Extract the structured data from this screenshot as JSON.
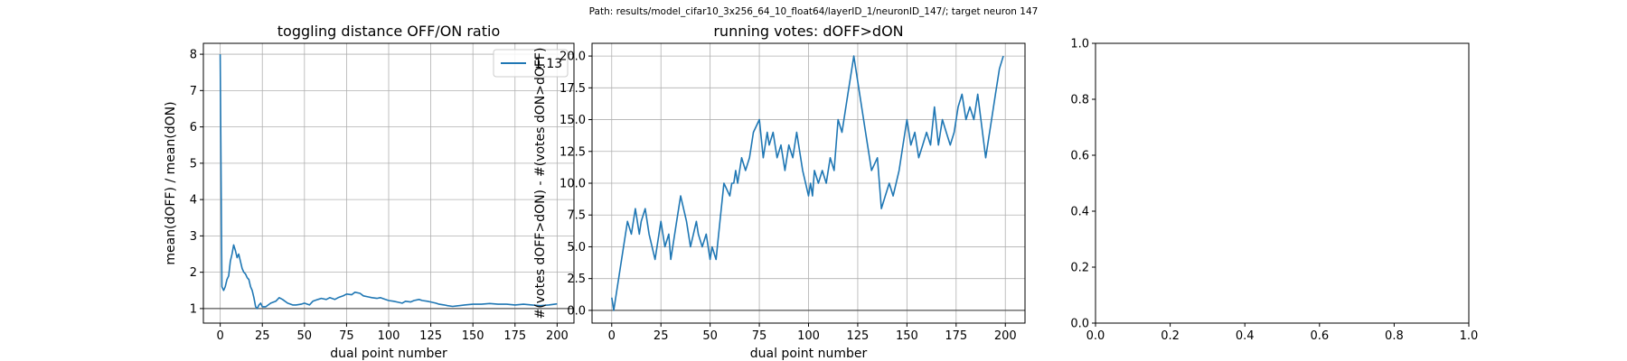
{
  "suptitle": "Path: results/model_cifar10_3x256_64_10_float64/layerID_1/neuronID_147/; target neuron 147",
  "colors": {
    "line": "#1f77b4",
    "grid": "#b0b0b0",
    "ref_line": "#555555"
  },
  "chart_data": [
    {
      "type": "line",
      "title": "toggling distance OFF/ON ratio",
      "xlabel": "dual point number",
      "ylabel": "mean(dOFF) / mean(dON)",
      "xlim": [
        -10,
        210
      ],
      "ylim": [
        0.6,
        8.3
      ],
      "xticks": [
        0,
        25,
        50,
        75,
        100,
        125,
        150,
        175,
        200
      ],
      "yticks": [
        1,
        2,
        3,
        4,
        5,
        6,
        7,
        8
      ],
      "ytick_labels": [
        "1",
        "2",
        "3",
        "4",
        "5",
        "6",
        "7",
        "8"
      ],
      "grid": true,
      "legend": {
        "position": "upper-right",
        "entries": [
          "1.13"
        ]
      },
      "hline": 1,
      "series": [
        {
          "name": "1.13",
          "x": [
            0,
            1,
            2,
            3,
            4,
            5,
            6,
            7,
            8,
            9,
            10,
            11,
            12,
            13,
            14,
            15,
            16,
            17,
            18,
            19,
            20,
            21,
            22,
            23,
            24,
            25,
            27,
            30,
            33,
            35,
            37,
            40,
            43,
            45,
            48,
            50,
            53,
            55,
            58,
            60,
            63,
            65,
            68,
            70,
            73,
            75,
            78,
            80,
            83,
            85,
            88,
            90,
            93,
            95,
            98,
            100,
            103,
            105,
            108,
            110,
            113,
            115,
            118,
            120,
            123,
            125,
            128,
            130,
            133,
            135,
            138,
            140,
            145,
            150,
            155,
            160,
            165,
            170,
            175,
            180,
            185,
            190,
            195,
            200
          ],
          "y": [
            8.0,
            1.6,
            1.5,
            1.6,
            1.8,
            1.9,
            2.3,
            2.5,
            2.75,
            2.6,
            2.4,
            2.5,
            2.3,
            2.1,
            2.0,
            1.95,
            1.85,
            1.8,
            1.6,
            1.5,
            1.3,
            1.05,
            1.0,
            1.1,
            1.15,
            1.05,
            1.05,
            1.15,
            1.2,
            1.3,
            1.25,
            1.15,
            1.1,
            1.1,
            1.12,
            1.15,
            1.1,
            1.2,
            1.25,
            1.28,
            1.25,
            1.3,
            1.25,
            1.3,
            1.35,
            1.4,
            1.38,
            1.45,
            1.42,
            1.35,
            1.32,
            1.3,
            1.28,
            1.3,
            1.25,
            1.22,
            1.2,
            1.18,
            1.15,
            1.2,
            1.18,
            1.22,
            1.25,
            1.22,
            1.2,
            1.18,
            1.15,
            1.12,
            1.1,
            1.08,
            1.06,
            1.07,
            1.1,
            1.12,
            1.12,
            1.14,
            1.12,
            1.12,
            1.1,
            1.12,
            1.1,
            1.08,
            1.1,
            1.13
          ]
        }
      ]
    },
    {
      "type": "line",
      "title": "running votes: dOFF>dON",
      "xlabel": "dual point number",
      "ylabel": "#(votes dOFF>dON) - #(votes dON>dOFF)",
      "xlim": [
        -10,
        210
      ],
      "ylim": [
        -1,
        21
      ],
      "xticks": [
        0,
        25,
        50,
        75,
        100,
        125,
        150,
        175,
        200
      ],
      "yticks": [
        0,
        2.5,
        5,
        7.5,
        10,
        12.5,
        15,
        17.5,
        20
      ],
      "ytick_labels": [
        "0.0",
        "2.5",
        "5.0",
        "7.5",
        "10.0",
        "12.5",
        "15.0",
        "17.5",
        "20.0"
      ],
      "grid": true,
      "hline": 0,
      "series": [
        {
          "name": "",
          "x": [
            0,
            1,
            4,
            7,
            8,
            10,
            12,
            14,
            15,
            17,
            19,
            22,
            25,
            27,
            29,
            30,
            33,
            35,
            38,
            40,
            43,
            44,
            46,
            48,
            50,
            51,
            53,
            55,
            57,
            60,
            61,
            62,
            63,
            64,
            66,
            68,
            70,
            72,
            75,
            77,
            79,
            80,
            82,
            84,
            86,
            88,
            90,
            92,
            94,
            97,
            100,
            101,
            102,
            103,
            105,
            107,
            109,
            111,
            113,
            115,
            117,
            120,
            123,
            126,
            129,
            132,
            135,
            137,
            139,
            141,
            143,
            146,
            148,
            150,
            152,
            154,
            156,
            158,
            160,
            162,
            164,
            166,
            168,
            170,
            172,
            174,
            176,
            178,
            180,
            182,
            184,
            186,
            190,
            193,
            195,
            197,
            199
          ],
          "y": [
            1,
            0,
            3,
            6,
            7,
            6,
            8,
            6,
            7,
            8,
            6,
            4,
            7,
            5,
            6,
            4,
            7,
            9,
            7,
            5,
            7,
            6,
            5,
            6,
            4,
            5,
            4,
            7,
            10,
            9,
            10,
            10,
            11,
            10,
            12,
            11,
            12,
            14,
            15,
            12,
            14,
            13,
            14,
            12,
            13,
            11,
            13,
            12,
            14,
            11,
            9,
            10,
            9,
            11,
            10,
            11,
            10,
            12,
            11,
            15,
            14,
            17,
            20,
            17,
            14,
            11,
            12,
            8,
            9,
            10,
            9,
            11,
            13,
            15,
            13,
            14,
            12,
            13,
            14,
            13,
            16,
            13,
            15,
            14,
            13,
            14,
            16,
            17,
            15,
            16,
            15,
            17,
            12,
            15,
            17,
            19,
            20
          ]
        }
      ]
    },
    {
      "type": "line",
      "title": "",
      "xlabel": "",
      "ylabel": "",
      "xlim": [
        0,
        1
      ],
      "ylim": [
        0,
        1
      ],
      "xticks": [
        0,
        0.2,
        0.4,
        0.6,
        0.8,
        1
      ],
      "xtick_labels": [
        "0.0",
        "0.2",
        "0.4",
        "0.6",
        "0.8",
        "1.0"
      ],
      "yticks": [
        0,
        0.2,
        0.4,
        0.6,
        0.8,
        1
      ],
      "ytick_labels": [
        "0.0",
        "0.2",
        "0.4",
        "0.6",
        "0.8",
        "1.0"
      ],
      "grid": false,
      "series": []
    }
  ]
}
